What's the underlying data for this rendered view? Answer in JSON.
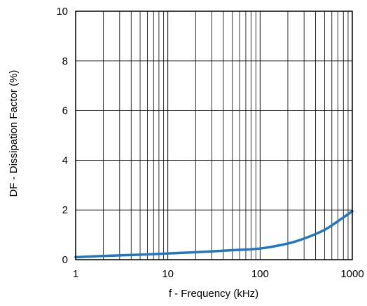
{
  "chart_data": {
    "type": "line",
    "xlabel": "f - Frequency (kHz)",
    "ylabel": "DF - Dissipation Factor (%)",
    "x_scale": "log",
    "xlim": [
      1,
      1000
    ],
    "ylim": [
      0,
      10
    ],
    "x_ticks": [
      1,
      10,
      100,
      1000
    ],
    "x_tick_labels": [
      "1",
      "10",
      "100",
      "1000"
    ],
    "y_ticks": [
      0,
      2,
      4,
      6,
      8,
      10
    ],
    "y_tick_labels": [
      "0",
      "2",
      "4",
      "6",
      "8",
      "10"
    ],
    "grid": true,
    "series": [
      {
        "color": "#2277c0",
        "x": [
          1,
          2,
          5,
          10,
          20,
          50,
          100,
          200,
          300,
          500,
          700,
          1000
        ],
        "y": [
          0.1,
          0.15,
          0.2,
          0.25,
          0.3,
          0.38,
          0.45,
          0.65,
          0.85,
          1.2,
          1.55,
          1.95
        ]
      }
    ]
  }
}
